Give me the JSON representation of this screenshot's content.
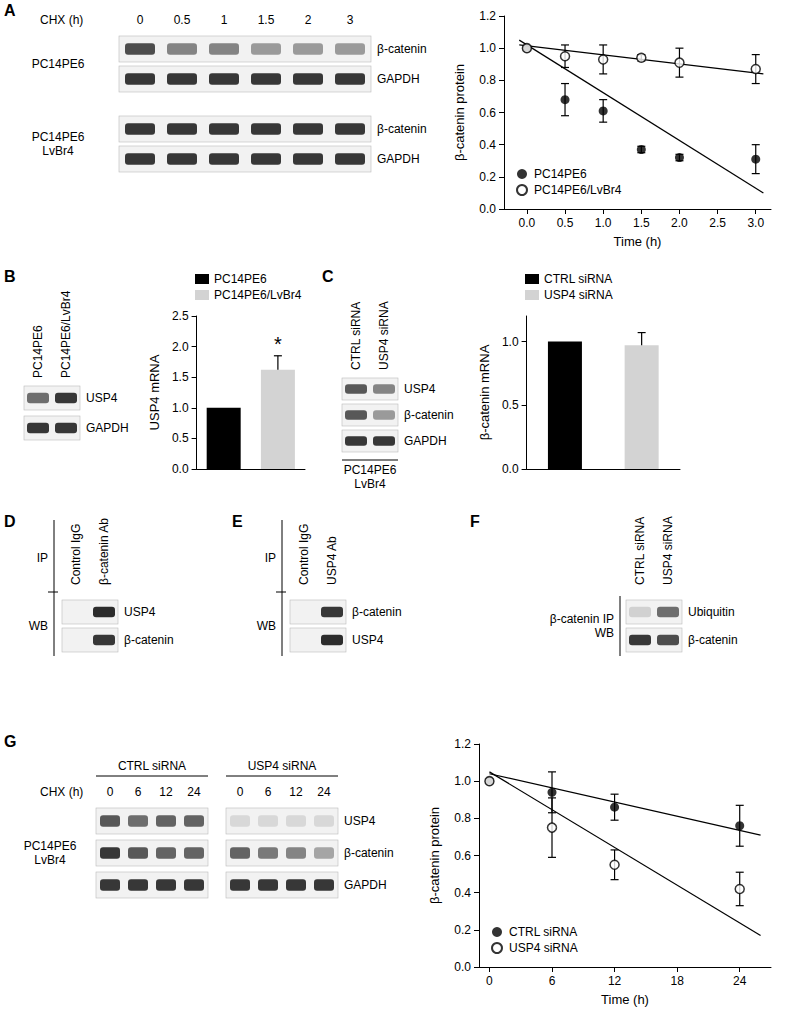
{
  "panel_labels": [
    "A",
    "B",
    "C",
    "D",
    "E",
    "F",
    "G"
  ],
  "blots": {
    "A": {
      "header": "CHX (h)",
      "lanes": [
        "0",
        "0.5",
        "1",
        "1.5",
        "2",
        "3"
      ],
      "groups": [
        {
          "label": [
            "PC14PE6"
          ],
          "rows": [
            {
              "label": "β-catenin",
              "intensity": [
                0.75,
                0.5,
                0.5,
                0.4,
                0.4,
                0.4
              ]
            },
            {
              "label": "GAPDH",
              "intensity": [
                0.85,
                0.85,
                0.85,
                0.85,
                0.85,
                0.85
              ]
            }
          ]
        },
        {
          "label": [
            "PC14PE6",
            "LvBr4"
          ],
          "rows": [
            {
              "label": "β-catenin",
              "intensity": [
                0.85,
                0.85,
                0.85,
                0.85,
                0.85,
                0.85
              ]
            },
            {
              "label": "GAPDH",
              "intensity": [
                0.85,
                0.85,
                0.85,
                0.85,
                0.85,
                0.85
              ]
            }
          ]
        }
      ]
    },
    "B": {
      "lanes": [
        "PC14PE6",
        "PC14PE6/LvBr4"
      ],
      "rows": [
        {
          "label": "USP4",
          "intensity": [
            0.6,
            0.85
          ]
        },
        {
          "label": "GAPDH",
          "intensity": [
            0.85,
            0.85
          ]
        }
      ]
    },
    "C": {
      "lanes": [
        "CTRL siRNA",
        "USP4 siRNA"
      ],
      "rows": [
        {
          "label": "USP4",
          "intensity": [
            0.7,
            0.5
          ]
        },
        {
          "label": "β-catenin",
          "intensity": [
            0.7,
            0.4
          ]
        },
        {
          "label": "GAPDH",
          "intensity": [
            0.85,
            0.85
          ]
        }
      ],
      "footer": [
        "PC14PE6",
        "LvBr4"
      ]
    },
    "D": {
      "top_label": "IP",
      "side_label": [
        "WB"
      ],
      "lanes": [
        "Control IgG",
        "β-catenin Ab"
      ],
      "rows": [
        {
          "label": "USP4",
          "intensity": [
            0,
            0.9
          ]
        },
        {
          "label": "β-catenin",
          "intensity": [
            0,
            0.85
          ]
        }
      ]
    },
    "E": {
      "top_label": "IP",
      "side_label": [
        "WB"
      ],
      "lanes": [
        "Control IgG",
        "USP4 Ab"
      ],
      "rows": [
        {
          "label": "β-catenin",
          "intensity": [
            0,
            0.85
          ]
        },
        {
          "label": "USP4",
          "intensity": [
            0,
            0.9
          ]
        }
      ]
    },
    "F": {
      "side_label": [
        "β-catenin IP",
        "WB"
      ],
      "lanes": [
        "CTRL siRNA",
        "USP4 siRNA"
      ],
      "rows": [
        {
          "label": "Ubiquitin",
          "intensity": [
            0.15,
            0.6
          ]
        },
        {
          "label": "β-catenin",
          "intensity": [
            0.85,
            0.75
          ]
        }
      ]
    },
    "G": {
      "header": "CHX (h)",
      "lane_groups": [
        {
          "label": "CTRL siRNA",
          "lanes": [
            "0",
            "6",
            "12",
            "24"
          ]
        },
        {
          "label": "USP4 siRNA",
          "lanes": [
            "0",
            "6",
            "12",
            "24"
          ]
        }
      ],
      "side_label": [
        "PC14PE6",
        "LvBr4"
      ],
      "rows": [
        {
          "label": "USP4",
          "intensity": [
            0.7,
            0.6,
            0.65,
            0.65,
            0.12,
            0.12,
            0.12,
            0.12
          ]
        },
        {
          "label": "β-catenin",
          "intensity": [
            0.85,
            0.7,
            0.65,
            0.65,
            0.65,
            0.55,
            0.5,
            0.35
          ]
        },
        {
          "label": "GAPDH",
          "intensity": [
            0.85,
            0.85,
            0.85,
            0.85,
            0.85,
            0.85,
            0.85,
            0.85
          ]
        }
      ]
    }
  },
  "chart_data": [
    {
      "type": "scatter",
      "x": [
        0,
        0.5,
        1,
        1.5,
        2,
        3
      ],
      "xlabel": "Time (h)",
      "ylabel": "β-catenin protein",
      "xlim": [
        -0.3,
        3.2
      ],
      "xticks": [
        {
          "value": 0,
          "label": "0.0"
        },
        0.5,
        {
          "value": 1,
          "label": "1.0"
        },
        1.5,
        {
          "value": 2,
          "label": "2.0"
        },
        2.5,
        {
          "value": 3,
          "label": "3.0"
        }
      ],
      "ylim": [
        0,
        1.2
      ],
      "yticks": [
        {
          "value": 0,
          "label": "0.0"
        },
        0.2,
        0.4,
        0.6,
        0.8,
        {
          "value": 1,
          "label": "1.0"
        },
        1.2
      ],
      "legend": "lower left",
      "grid": false,
      "series": [
        {
          "name": "PC14PE6",
          "color": "#000000",
          "marker": "circle",
          "values": [
            1.0,
            0.68,
            0.61,
            0.37,
            0.32,
            0.31
          ],
          "errors": [
            0,
            0.1,
            0.07,
            0.02,
            0.02,
            0.09
          ],
          "fit": {
            "x": [
              -0.1,
              3.1
            ],
            "values": [
              1.05,
              0.1
            ]
          }
        },
        {
          "name": "PC14PE6/LvBr4",
          "color": "#000000",
          "marker": "open circle",
          "values": [
            1.0,
            0.95,
            0.93,
            0.94,
            0.91,
            0.87
          ],
          "errors": [
            0,
            0.07,
            0.09,
            0.02,
            0.09,
            0.09
          ],
          "fit": {
            "x": [
              -0.1,
              3.1
            ],
            "values": [
              1.02,
              0.84
            ]
          }
        }
      ]
    },
    {
      "type": "bar",
      "categories": [
        null,
        null
      ],
      "ylabel": "USP4 mRNA",
      "ylim": [
        0,
        2.5
      ],
      "yticks": [
        {
          "value": 0,
          "label": "0.0"
        },
        0.5,
        {
          "value": 1,
          "label": "1.0"
        },
        1.5,
        {
          "value": 2,
          "label": "2.0"
        },
        2.5
      ],
      "tick_labels": "y",
      "legend": "top",
      "grid": false,
      "series": [
        {
          "name": "PC14PE6",
          "color": "#000000",
          "values": [
            1.0,
            null
          ],
          "errors": [
            0,
            null
          ]
        },
        {
          "name": "PC14PE6/LvBr4",
          "color": "#d3d3d3",
          "values": [
            null,
            1.62
          ],
          "errors": [
            null,
            0.23
          ]
        }
      ],
      "annotations": [
        {
          "text": "*",
          "series": "PC14PE6/LvBr4"
        }
      ]
    },
    {
      "type": "bar",
      "categories": [
        null,
        null
      ],
      "ylabel": "β-catenin mRNA",
      "ylim": [
        0,
        1.2
      ],
      "yticks": [
        {
          "value": 0,
          "label": "0.0"
        },
        0.5,
        {
          "value": 1,
          "label": "1.0"
        }
      ],
      "tick_labels": "y",
      "legend": "top",
      "grid": false,
      "series": [
        {
          "name": "CTRL siRNA",
          "color": "#000000",
          "values": [
            1.0,
            null
          ],
          "errors": [
            0,
            null
          ]
        },
        {
          "name": "USP4 siRNA",
          "color": "#d3d3d3",
          "values": [
            null,
            0.97
          ],
          "errors": [
            null,
            0.1
          ]
        }
      ]
    },
    {
      "type": "scatter",
      "x": [
        0,
        6,
        12,
        24
      ],
      "xlabel": "Time (h)",
      "ylabel": "β-catenin protein",
      "xlim": [
        -1,
        27
      ],
      "xticks": [
        0,
        6,
        12,
        18,
        24
      ],
      "ylim": [
        0,
        1.2
      ],
      "yticks": [
        {
          "value": 0,
          "label": "0.0"
        },
        0.2,
        0.4,
        0.6,
        0.8,
        {
          "value": 1,
          "label": "1.0"
        },
        1.2
      ],
      "legend": "lower left",
      "grid": false,
      "series": [
        {
          "name": "CTRL siRNA",
          "color": "#000000",
          "marker": "circle",
          "values": [
            1.0,
            0.94,
            0.86,
            0.76
          ],
          "errors": [
            0,
            0.11,
            0.07,
            0.11
          ],
          "fit": {
            "x": [
              0,
              26
            ],
            "values": [
              1.04,
              0.71
            ]
          }
        },
        {
          "name": "USP4 siRNA",
          "color": "#000000",
          "marker": "open circle",
          "values": [
            1.0,
            0.75,
            0.55,
            0.42
          ],
          "errors": [
            0,
            0.16,
            0.08,
            0.09
          ],
          "fit": {
            "x": [
              0,
              26
            ],
            "values": [
              1.05,
              0.17
            ]
          }
        }
      ]
    }
  ]
}
